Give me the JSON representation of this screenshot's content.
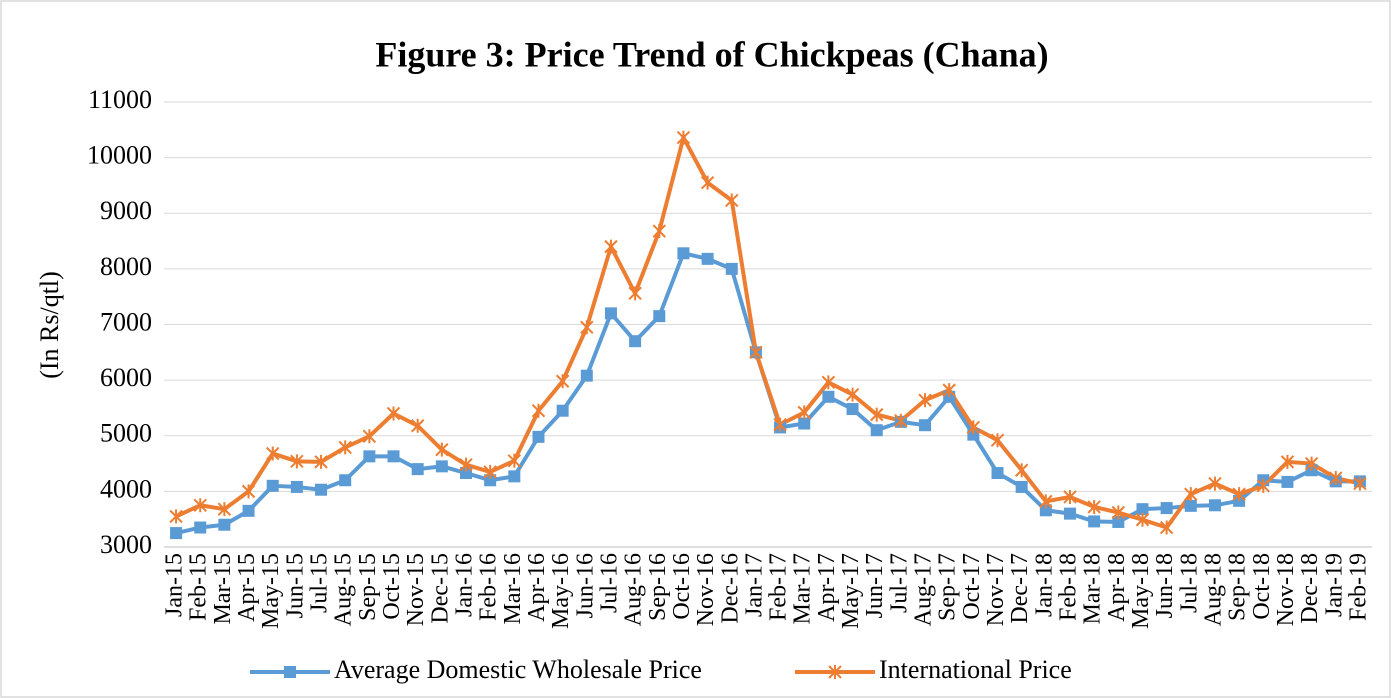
{
  "chart_data": {
    "type": "line",
    "title": "Figure 3: Price Trend of Chickpeas (Chana)",
    "y_label": "(In Rs/qtl)",
    "categories": [
      "Jan-15",
      "Feb-15",
      "Mar-15",
      "Apr-15",
      "May-15",
      "Jun-15",
      "Jul-15",
      "Aug-15",
      "Sep-15",
      "Oct-15",
      "Nov-15",
      "Dec-15",
      "Jan-16",
      "Feb-16",
      "Mar-16",
      "Apr-16",
      "May-16",
      "Jun-16",
      "Jul-16",
      "Aug-16",
      "Sep-16",
      "Oct-16",
      "Nov-16",
      "Dec-16",
      "Jan-17",
      "Feb-17",
      "Mar-17",
      "Apr-17",
      "May-17",
      "Jun-17",
      "Jul-17",
      "Aug-17",
      "Sep-17",
      "Oct-17",
      "Nov-17",
      "Dec-17",
      "Jan-18",
      "Feb-18",
      "Mar-18",
      "Apr-18",
      "May-18",
      "Jun-18",
      "Jul-18",
      "Aug-18",
      "Sep-18",
      "Oct-18",
      "Nov-18",
      "Dec-18",
      "Jan-19",
      "Feb-19"
    ],
    "series": [
      {
        "name": "Average Domestic Wholesale Price",
        "color": "#5b9bd5",
        "marker": "square",
        "values": [
          3250,
          3350,
          3400,
          3650,
          4100,
          4080,
          4030,
          4200,
          4630,
          4630,
          4400,
          4450,
          4330,
          4200,
          4270,
          4980,
          5450,
          6080,
          7200,
          6700,
          7150,
          8280,
          8180,
          8000,
          6500,
          5150,
          5220,
          5700,
          5480,
          5100,
          5250,
          5190,
          5700,
          5020,
          4330,
          4080,
          3660,
          3600,
          3460,
          3450,
          3680,
          3700,
          3740,
          3750,
          3830,
          4200,
          4170,
          4380,
          4180,
          4180
        ]
      },
      {
        "name": "International Price",
        "color": "#ed7d31",
        "marker": "star",
        "values": [
          3550,
          3750,
          3680,
          4000,
          4680,
          4540,
          4530,
          4790,
          4990,
          5400,
          5180,
          4750,
          4480,
          4350,
          4550,
          5450,
          5980,
          6950,
          8400,
          7560,
          8680,
          10360,
          9550,
          9230,
          6500,
          5200,
          5420,
          5960,
          5740,
          5380,
          5270,
          5640,
          5820,
          5150,
          4920,
          4380,
          3820,
          3900,
          3720,
          3620,
          3490,
          3350,
          3950,
          4140,
          3950,
          4100,
          4530,
          4500,
          4240,
          4140
        ]
      }
    ],
    "ylim": [
      3000,
      11000
    ],
    "yticks": [
      3000,
      4000,
      5000,
      6000,
      7000,
      8000,
      9000,
      10000,
      11000
    ],
    "grid": true,
    "legend": "bottom"
  }
}
